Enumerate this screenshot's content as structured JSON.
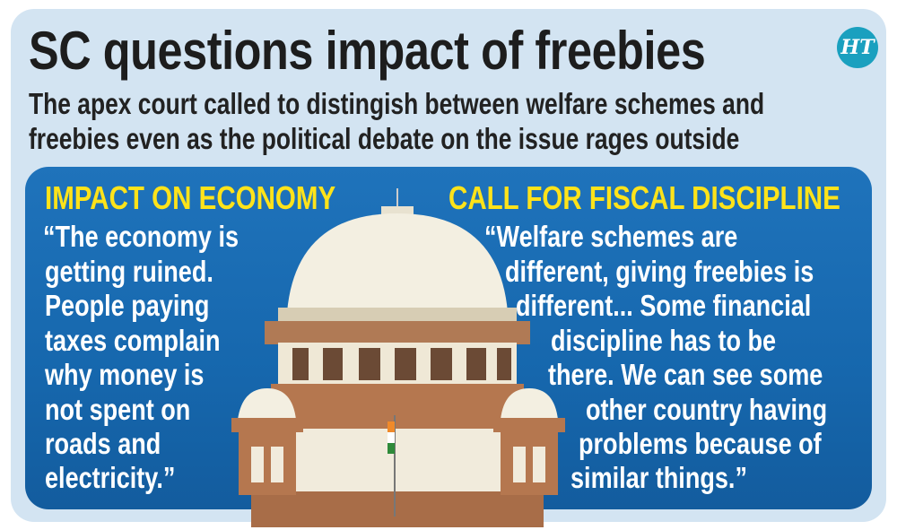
{
  "title": "SC questions impact of freebies",
  "subtitle": [
    "The apex court called to distingish between welfare schemes and",
    "freebies even as the political debate on the issue rages outside"
  ],
  "logo": "HT",
  "left": {
    "heading": "IMPACT ON ECONOMY",
    "lines": [
      "“The economy is",
      "getting ruined.",
      "People paying",
      "taxes complain",
      "why money is",
      "not spent on",
      "roads and",
      "electricity.”"
    ]
  },
  "right": {
    "heading": "CALL FOR FISCAL DISCIPLINE",
    "lines": [
      "“Welfare schemes are",
      "different, giving freebies is",
      "different... Some financial",
      "discipline has to be",
      "there. We can see some",
      "other country having",
      "problems because of",
      "similar things.”"
    ]
  },
  "colors": {
    "card": "#d3e4f2",
    "panel": "#1a6cb3",
    "heading": "#ffe31a",
    "logo": "#1aa0bf"
  }
}
